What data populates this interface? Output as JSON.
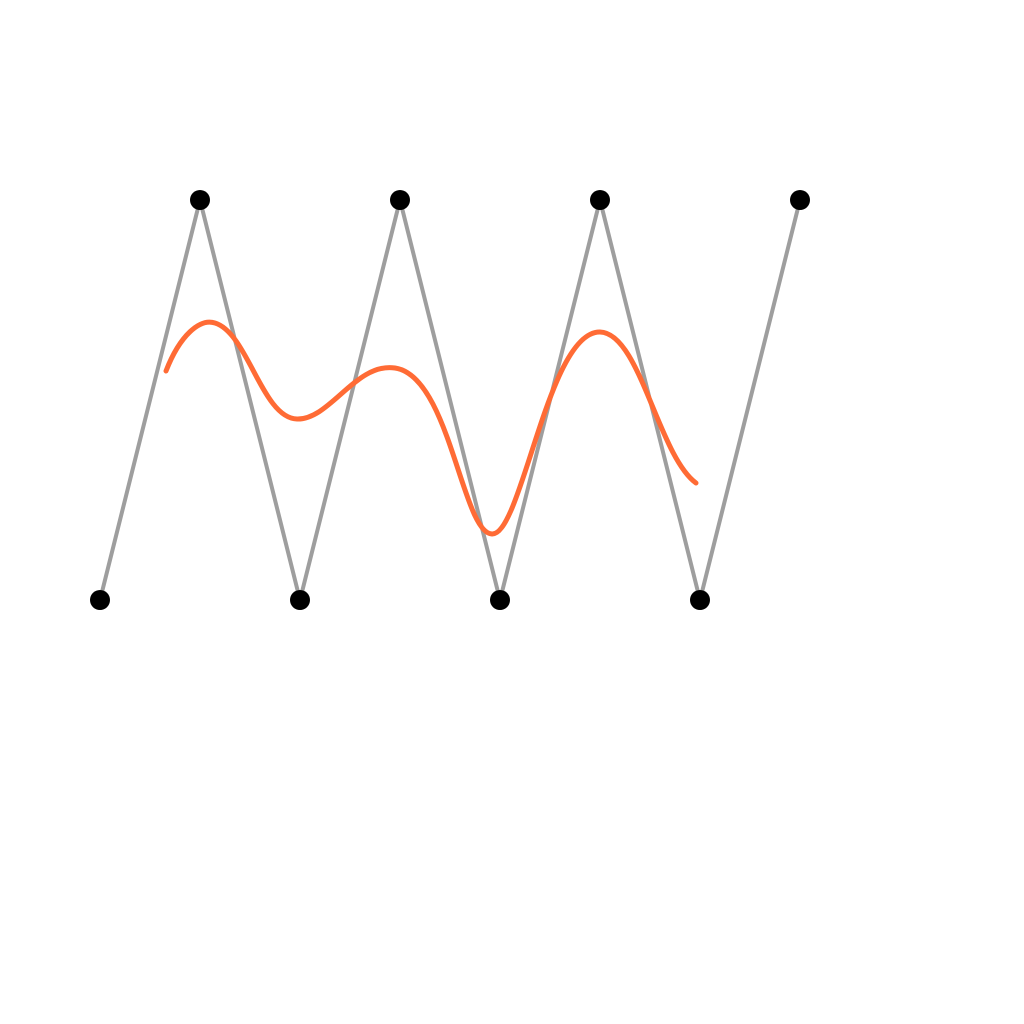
{
  "diagram": {
    "type": "spline-control-polygon",
    "colors": {
      "background": "#ffffff",
      "control_polygon": "#9e9e9e",
      "control_points": "#000000",
      "curve": "#ff6b35"
    },
    "control_points": [
      {
        "row": "bottom",
        "index": 0
      },
      {
        "row": "top",
        "index": 1
      },
      {
        "row": "bottom",
        "index": 2
      },
      {
        "row": "top",
        "index": 3
      },
      {
        "row": "bottom",
        "index": 4
      },
      {
        "row": "top",
        "index": 5
      },
      {
        "row": "bottom",
        "index": 6
      },
      {
        "row": "top",
        "index": 7
      }
    ]
  }
}
